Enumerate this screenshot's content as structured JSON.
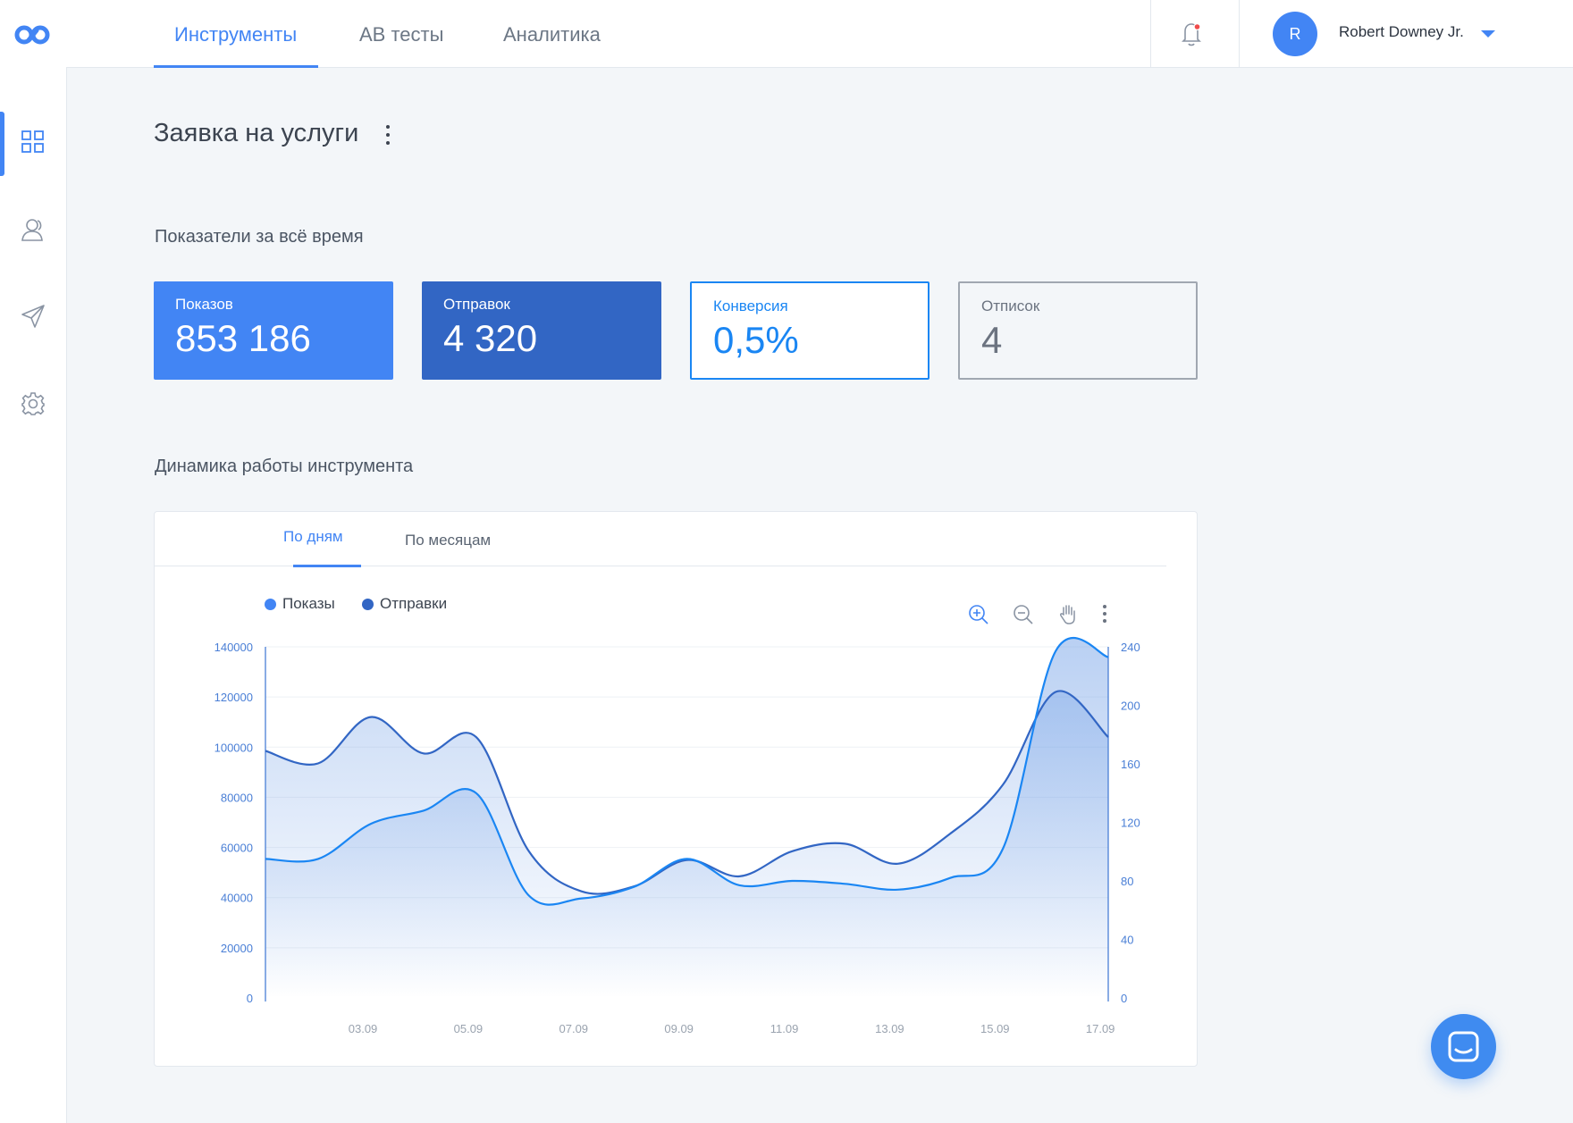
{
  "nav": {
    "tabs": [
      {
        "label": "Инструменты",
        "active": true
      },
      {
        "label": "AB тесты",
        "active": false
      },
      {
        "label": "Аналитика",
        "active": false
      }
    ]
  },
  "sidebar": {
    "items": [
      {
        "icon": "dashboard-icon",
        "active": true
      },
      {
        "icon": "users-icon",
        "active": false
      },
      {
        "icon": "send-icon",
        "active": false
      },
      {
        "icon": "settings-icon",
        "active": false
      }
    ]
  },
  "user": {
    "initial": "R",
    "name": "Robert Downey Jr."
  },
  "page": {
    "title": "Заявка на услуги"
  },
  "stats": {
    "title": "Показатели за всё время",
    "cards": [
      {
        "label": "Показов",
        "value": "853 186"
      },
      {
        "label": "Отправок",
        "value": "4 320"
      },
      {
        "label": "Конверсия",
        "value": "0,5%"
      },
      {
        "label": "Отписок",
        "value": "4"
      }
    ]
  },
  "dynamics": {
    "title": "Динамика работы инструмента",
    "tabs": [
      {
        "label": "По дням",
        "active": true
      },
      {
        "label": "По месяцам",
        "active": false
      }
    ]
  },
  "colors": {
    "accent": "#4285f4",
    "dark_blue": "#3266c4",
    "bright_blue": "#1a86f3",
    "gray": "#a0a7b1"
  },
  "chart_data": {
    "type": "area",
    "title": "",
    "legend": [
      {
        "name": "Показы",
        "color": "#4285f4"
      },
      {
        "name": "Отправки",
        "color": "#3266c4"
      }
    ],
    "legend_position": "top-left",
    "x_ticks": [
      "03.09",
      "05.09",
      "07.09",
      "09.09",
      "11.09",
      "13.09",
      "15.09",
      "17.09"
    ],
    "y_left": {
      "ticks": [
        0,
        20000,
        40000,
        60000,
        80000,
        100000,
        120000,
        140000
      ],
      "range": [
        0,
        140000
      ]
    },
    "y_right": {
      "ticks": [
        0,
        40,
        80,
        120,
        160,
        200,
        240
      ],
      "range": [
        0,
        240
      ]
    },
    "x_range": [
      1.15,
      17.15
    ],
    "grid": true,
    "series": [
      {
        "name": "Отправки",
        "axis": "left",
        "color": "#3266c4",
        "points": [
          [
            1.15,
            98500
          ],
          [
            2.15,
            93500
          ],
          [
            3.15,
            112000
          ],
          [
            4.15,
            97500
          ],
          [
            5.15,
            104000
          ],
          [
            6.15,
            58500
          ],
          [
            7.15,
            42500
          ],
          [
            8.15,
            44500
          ],
          [
            9.15,
            55000
          ],
          [
            10.15,
            48500
          ],
          [
            11.15,
            58500
          ],
          [
            12.15,
            61500
          ],
          [
            13.15,
            53500
          ],
          [
            14.15,
            65500
          ],
          [
            15.15,
            85000
          ],
          [
            16.15,
            122000
          ],
          [
            17.15,
            104000
          ]
        ]
      },
      {
        "name": "Показы",
        "axis": "right",
        "color": "#1a86f3",
        "points": [
          [
            1.15,
            95
          ],
          [
            2.15,
            95
          ],
          [
            3.15,
            119
          ],
          [
            4.15,
            128
          ],
          [
            5.15,
            140
          ],
          [
            6.15,
            70
          ],
          [
            7.15,
            68
          ],
          [
            8.15,
            76
          ],
          [
            9.15,
            95
          ],
          [
            10.15,
            77
          ],
          [
            11.15,
            80
          ],
          [
            12.15,
            78
          ],
          [
            13.15,
            74
          ],
          [
            14.15,
            82
          ],
          [
            15.15,
            102
          ],
          [
            16.15,
            237
          ],
          [
            17.15,
            233
          ]
        ]
      }
    ]
  }
}
